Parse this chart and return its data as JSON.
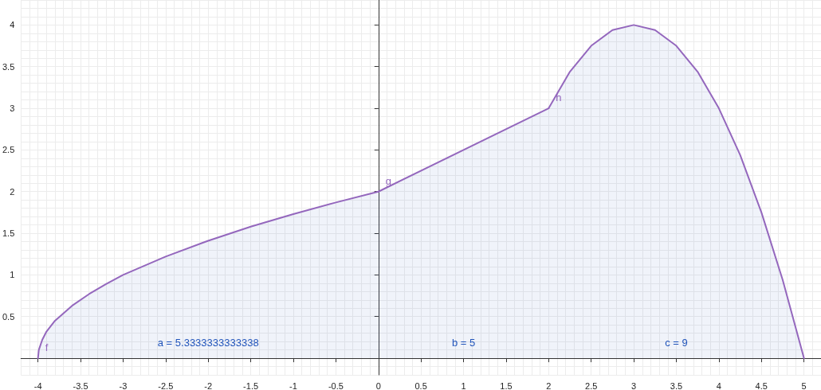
{
  "chart_data": {
    "type": "area",
    "xlim": [
      -4.2,
      5.2
    ],
    "ylim": [
      -0.2,
      4.3
    ],
    "xticks": [
      -4,
      -3.5,
      -3,
      -2.5,
      -2,
      -1.5,
      -1,
      -0.5,
      0,
      0.5,
      1,
      1.5,
      2,
      2.5,
      3,
      3.5,
      4,
      4.5,
      5
    ],
    "yticks": [
      0.5,
      1,
      1.5,
      2,
      2.5,
      3,
      3.5,
      4
    ],
    "grid": true,
    "legend": false,
    "marker": "none",
    "line_style": "solid",
    "series": [
      {
        "name": "f",
        "color": "#9467bd",
        "x": [
          -4,
          -3.99,
          -3.95,
          -3.9,
          -3.8,
          -3.6,
          -3.4,
          -3.2,
          -3,
          -2.5,
          -2,
          -1.5,
          -1,
          -0.5,
          0
        ],
        "values": [
          0,
          0.1,
          0.22,
          0.32,
          0.45,
          0.63,
          0.77,
          0.89,
          1,
          1.22,
          1.41,
          1.58,
          1.73,
          1.87,
          2
        ]
      },
      {
        "name": "g",
        "color": "#9467bd",
        "x": [
          0,
          2
        ],
        "values": [
          2,
          3
        ]
      },
      {
        "name": "h",
        "color": "#9467bd",
        "x": [
          2,
          2.25,
          2.5,
          2.75,
          3,
          3.25,
          3.5,
          3.75,
          4,
          4.25,
          4.5,
          4.75,
          5
        ],
        "values": [
          3,
          3.44,
          3.75,
          3.94,
          4,
          3.94,
          3.75,
          3.44,
          3,
          2.44,
          1.75,
          0.94,
          0
        ]
      }
    ],
    "annotations": [
      "a = 5.3333333333338",
      "b = 5",
      "c = 9"
    ]
  }
}
